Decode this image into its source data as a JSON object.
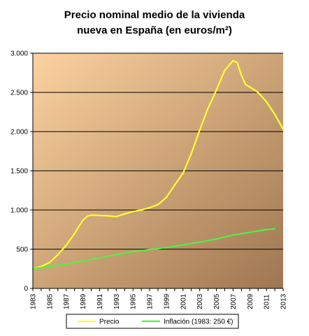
{
  "chart_data": {
    "type": "line",
    "title_lines": [
      "Precio nominal medio de la vivienda",
      "nueva en España (en euros/m²)"
    ],
    "xlabel": "",
    "ylabel": "",
    "xlim": [
      1983,
      2013
    ],
    "ylim": [
      0,
      3000
    ],
    "y_ticks": [
      0,
      500,
      1000,
      1500,
      2000,
      2500,
      3000
    ],
    "y_tick_labels": [
      "0",
      "500",
      "1.000",
      "1.500",
      "2.000",
      "2.500",
      "3.000"
    ],
    "x_ticks": [
      1983,
      1985,
      1987,
      1989,
      1991,
      1993,
      1995,
      1997,
      1999,
      2001,
      2003,
      2005,
      2007,
      2009,
      2011,
      2013
    ],
    "x_tick_labels": [
      "1983",
      "1985",
      "1987",
      "1989",
      "1991",
      "1993",
      "1995",
      "1997",
      "1999",
      "2001",
      "2003",
      "2005",
      "2007",
      "2009",
      "2011",
      "2013"
    ],
    "grid": true,
    "legend_position": "bottom",
    "background_gradient": [
      "#fcd2a0",
      "#9e7650"
    ],
    "series": [
      {
        "name": "Precio",
        "color": "#ffff33",
        "x": [
          1983,
          1984,
          1985,
          1986,
          1987,
          1988,
          1989,
          1989.5,
          1990,
          1991,
          1992,
          1993,
          1994,
          1995,
          1996,
          1997,
          1998,
          1999,
          2000,
          2001,
          2002,
          2003,
          2004,
          2004.5,
          2005,
          2006,
          2007,
          2007.5,
          2008,
          2008.5,
          2009,
          2010,
          2011,
          2012,
          2013
        ],
        "values": [
          250,
          280,
          330,
          430,
          550,
          700,
          870,
          920,
          935,
          930,
          925,
          915,
          950,
          980,
          1000,
          1030,
          1070,
          1160,
          1320,
          1470,
          1720,
          2020,
          2300,
          2410,
          2530,
          2780,
          2905,
          2880,
          2720,
          2600,
          2570,
          2500,
          2380,
          2220,
          2030
        ]
      },
      {
        "name": "Inflación (1983: 250 €)",
        "color": "#55ee44",
        "x": [
          1983,
          1985,
          1987,
          1989,
          1991,
          1993,
          1995,
          1997,
          1999,
          2001,
          2003,
          2005,
          2007,
          2009,
          2011,
          2012
        ],
        "values": [
          250,
          280,
          310,
          350,
          390,
          430,
          470,
          495,
          520,
          555,
          590,
          630,
          680,
          715,
          750,
          760
        ]
      }
    ]
  }
}
